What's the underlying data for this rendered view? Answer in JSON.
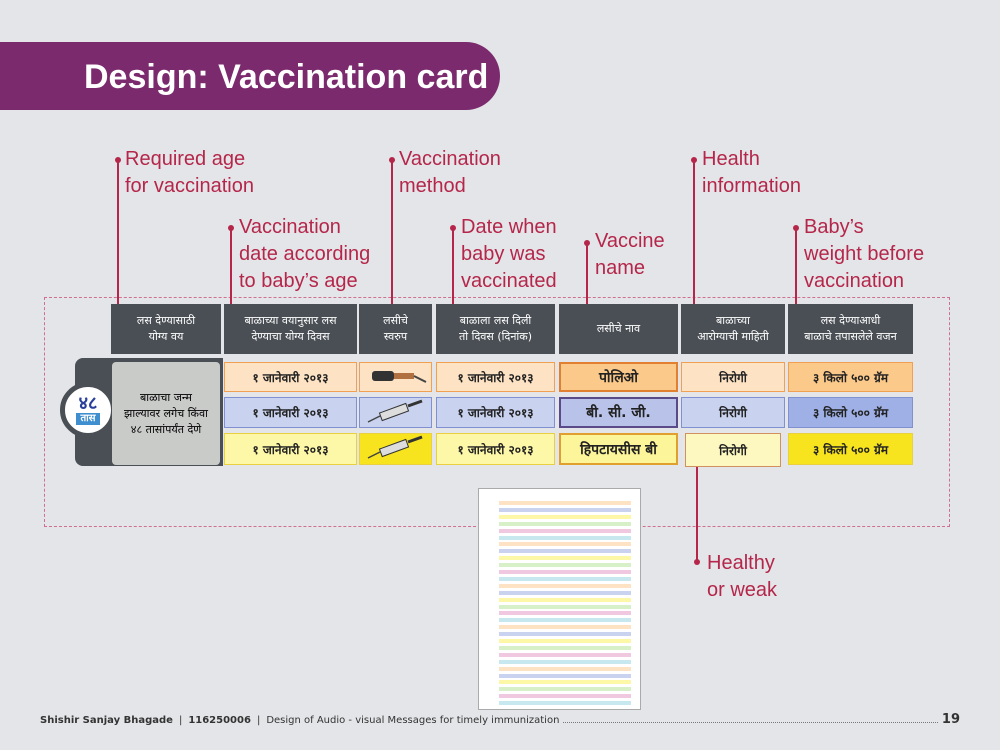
{
  "title": "Design: Vaccination card",
  "annotations": [
    [
      "Required age",
      "for vaccination"
    ],
    [
      "Vaccination",
      "date according",
      "to baby’s age"
    ],
    [
      "Vaccination",
      "method"
    ],
    [
      "Date when",
      "baby was",
      "vaccinated"
    ],
    [
      "Vaccine",
      "name"
    ],
    [
      "Health",
      "information"
    ],
    [
      "Baby’s",
      "weight before",
      "vaccination"
    ],
    [
      "Healthy",
      "or weak"
    ]
  ],
  "card": {
    "headers": [
      [
        "लस देण्यासाठी",
        "योग्य वय"
      ],
      [
        "बाळाच्या वयानुसार लस",
        "देण्याचा योग्य दिवस"
      ],
      [
        "लसीचे",
        "स्वरुप"
      ],
      [
        "बाळाला लस दिली",
        "तो दिवस (दिनांक)"
      ],
      [
        "लसीचे नाव"
      ],
      [
        "बाळाच्या",
        "आरोग्याची माहिती"
      ],
      [
        "लस देण्याआधी",
        "बाळाचे तपासलेले वजन"
      ]
    ],
    "badge": {
      "number": "४८",
      "unit": "तास"
    },
    "age": [
      "बाळाचा जन्म",
      "झाल्यावर लगेच किंवा",
      "४८ तासांपर्यंत देणे"
    ],
    "rows": [
      [
        "१ जानेवारी २०१३",
        "१ जानेवारी २०१३",
        "पोलिओ",
        "निरोगी",
        "३ किलो ५०० ग्रॅम"
      ],
      [
        "१ जानेवारी २०१३",
        "१ जानेवारी २०१३",
        "बी. सी. जी.",
        "निरोगी",
        "३ किलो ५०० ग्रॅम"
      ],
      [
        "१ जानेवारी २०१३",
        "१ जानेवारी २०१३",
        "हिपटायसीस बी",
        "निरोगी",
        "३ किलो ५०० ग्रॅम"
      ]
    ]
  },
  "footer": {
    "author": "Shishir Sanjay Bhagade",
    "id": "116250006",
    "project": "Design of Audio - visual Messages for timely immunization",
    "page": "19"
  }
}
